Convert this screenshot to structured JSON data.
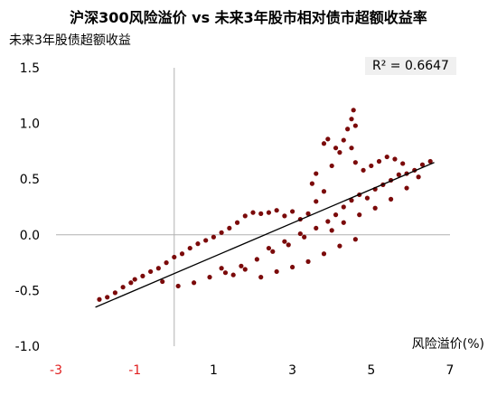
{
  "chart_data": {
    "type": "scatter",
    "title": "沪深300风险溢价 vs 未来3年股市相对债市超额收益率",
    "ylabel": "未来3年股债超额收益",
    "xlabel": "风险溢价(%)",
    "xlim": [
      -3,
      7
    ],
    "ylim": [
      -1.0,
      1.5
    ],
    "x_ticks": [
      "-3",
      "-1",
      "1",
      "3",
      "5",
      "7"
    ],
    "y_ticks": [
      "1.5",
      "1.0",
      "0.5",
      "0.0",
      "-0.5",
      "-1.0"
    ],
    "annotation": "R² = 0.6647",
    "colors": {
      "points": "#7b0a0a",
      "trendline": "#000000",
      "negative_tick": "#e02020"
    },
    "trendline": {
      "x": [
        -2.0,
        6.6
      ],
      "y": [
        -0.65,
        0.65
      ]
    },
    "series": [
      {
        "color": "#7b0a0a",
        "points": [
          [
            -1.9,
            -0.58
          ],
          [
            -1.7,
            -0.56
          ],
          [
            -1.5,
            -0.52
          ],
          [
            -1.3,
            -0.47
          ],
          [
            -1.1,
            -0.43
          ],
          [
            -1.0,
            -0.4
          ],
          [
            -0.8,
            -0.37
          ],
          [
            -0.6,
            -0.33
          ],
          [
            -0.4,
            -0.3
          ],
          [
            -0.2,
            -0.25
          ],
          [
            0.0,
            -0.2
          ],
          [
            0.2,
            -0.17
          ],
          [
            0.4,
            -0.12
          ],
          [
            0.6,
            -0.08
          ],
          [
            0.8,
            -0.05
          ],
          [
            1.0,
            -0.02
          ],
          [
            1.2,
            0.02
          ],
          [
            1.4,
            0.06
          ],
          [
            1.6,
            0.11
          ],
          [
            1.8,
            0.17
          ],
          [
            2.0,
            0.2
          ],
          [
            2.2,
            0.19
          ],
          [
            2.4,
            0.2
          ],
          [
            2.6,
            0.22
          ],
          [
            2.8,
            0.17
          ],
          [
            3.0,
            0.21
          ],
          [
            3.2,
            0.14
          ],
          [
            3.4,
            0.19
          ],
          [
            3.6,
            0.3
          ],
          [
            3.8,
            0.39
          ],
          [
            -0.3,
            -0.42
          ],
          [
            0.1,
            -0.46
          ],
          [
            0.5,
            -0.43
          ],
          [
            0.9,
            -0.38
          ],
          [
            1.3,
            -0.34
          ],
          [
            1.7,
            -0.28
          ],
          [
            2.1,
            -0.22
          ],
          [
            2.5,
            -0.15
          ],
          [
            2.9,
            -0.09
          ],
          [
            3.3,
            -0.02
          ],
          [
            1.2,
            -0.3
          ],
          [
            1.5,
            -0.36
          ],
          [
            1.8,
            -0.31
          ],
          [
            2.2,
            -0.38
          ],
          [
            2.6,
            -0.33
          ],
          [
            3.0,
            -0.29
          ],
          [
            3.4,
            -0.24
          ],
          [
            3.8,
            -0.17
          ],
          [
            4.2,
            -0.1
          ],
          [
            4.6,
            -0.04
          ],
          [
            2.4,
            -0.12
          ],
          [
            2.8,
            -0.06
          ],
          [
            3.2,
            0.01
          ],
          [
            3.6,
            0.06
          ],
          [
            4.0,
            0.04
          ],
          [
            4.3,
            0.11
          ],
          [
            4.7,
            0.18
          ],
          [
            5.1,
            0.24
          ],
          [
            5.5,
            0.32
          ],
          [
            5.9,
            0.42
          ],
          [
            3.9,
            0.12
          ],
          [
            4.1,
            0.18
          ],
          [
            4.3,
            0.25
          ],
          [
            4.5,
            0.31
          ],
          [
            4.7,
            0.36
          ],
          [
            4.9,
            0.33
          ],
          [
            5.1,
            0.41
          ],
          [
            5.3,
            0.45
          ],
          [
            5.5,
            0.49
          ],
          [
            5.7,
            0.54
          ],
          [
            5.9,
            0.55
          ],
          [
            6.1,
            0.58
          ],
          [
            6.3,
            0.63
          ],
          [
            6.5,
            0.66
          ],
          [
            6.2,
            0.52
          ],
          [
            4.0,
            0.62
          ],
          [
            4.2,
            0.74
          ],
          [
            4.3,
            0.85
          ],
          [
            4.4,
            0.95
          ],
          [
            4.5,
            1.04
          ],
          [
            4.55,
            1.12
          ],
          [
            4.6,
            0.98
          ],
          [
            4.5,
            0.78
          ],
          [
            4.6,
            0.65
          ],
          [
            4.8,
            0.58
          ],
          [
            5.0,
            0.62
          ],
          [
            5.2,
            0.66
          ],
          [
            5.4,
            0.7
          ],
          [
            5.6,
            0.68
          ],
          [
            5.8,
            0.64
          ],
          [
            3.8,
            0.82
          ],
          [
            3.9,
            0.86
          ],
          [
            4.1,
            0.78
          ],
          [
            3.6,
            0.55
          ],
          [
            3.5,
            0.46
          ]
        ]
      }
    ]
  }
}
